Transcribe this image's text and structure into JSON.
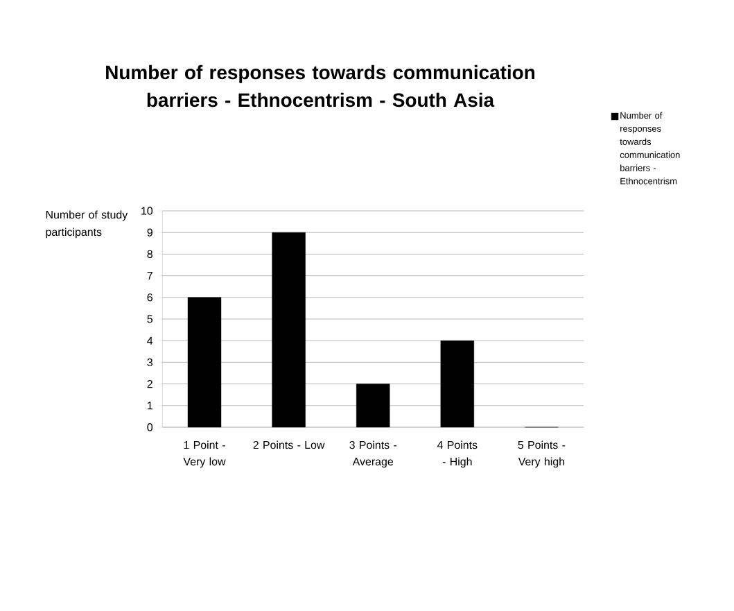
{
  "chart_data": {
    "type": "bar",
    "title": "Number of responses towards communication barriers - Ethnocentrism - South Asia",
    "ylabel": "Number of study participants",
    "categories": [
      "1 Point - Very low",
      "2 Points - Low",
      "3 Points - Average",
      "4 Points - High",
      "5 Points - Very high"
    ],
    "series": [
      {
        "name": "Number of responses towards communication barriers - Ethnocentrism",
        "color": "#000000",
        "values": [
          6,
          9,
          2,
          4,
          0
        ]
      }
    ],
    "ylim": [
      0,
      10
    ],
    "yticks": [
      0,
      1,
      2,
      3,
      4,
      5,
      6,
      7,
      8,
      9,
      10
    ],
    "grid": "y",
    "legend": "top right"
  }
}
